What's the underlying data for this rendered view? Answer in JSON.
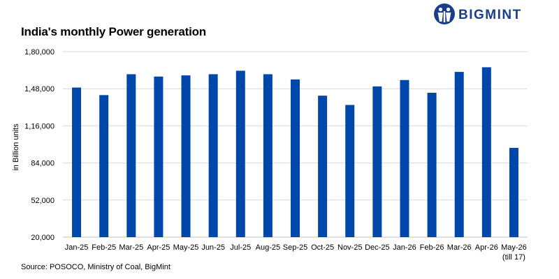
{
  "brand": {
    "name": "BIGMINT",
    "logo_icon": "bigmint-logo-icon"
  },
  "chart_data": {
    "type": "bar",
    "title": "India's monthly Power generation",
    "ylabel": "in Billion units",
    "xlabel": "",
    "source": "Source: POSOCO, Ministry of Coal, BigMint",
    "categories": [
      "Jan-25",
      "Feb-25",
      "Mar-25",
      "Apr-25",
      "May-25",
      "Jun-25",
      "Jul-25",
      "Aug-25",
      "Sep-25",
      "Oct-25",
      "Nov-25",
      "Dec-25",
      "Jan-26",
      "Feb-26",
      "Mar-26",
      "Apr-26",
      "May-26"
    ],
    "category_notes": {
      "May-26": "(till 17)"
    },
    "values": [
      149000,
      142500,
      160500,
      158500,
      159500,
      160500,
      163500,
      160500,
      156000,
      142000,
      134000,
      150000,
      155500,
      144500,
      162500,
      166500,
      97000
    ],
    "ylim": [
      20000,
      180000
    ],
    "yticks": [
      20000,
      52000,
      84000,
      116000,
      148000,
      180000
    ],
    "ytick_labels": [
      "20,000",
      "52,000",
      "84,000",
      "1,16,000",
      "1,48,000",
      "1,80,000"
    ],
    "grid": true,
    "bar_color": "#0047ab",
    "grid_color": "#d9d9d9"
  }
}
